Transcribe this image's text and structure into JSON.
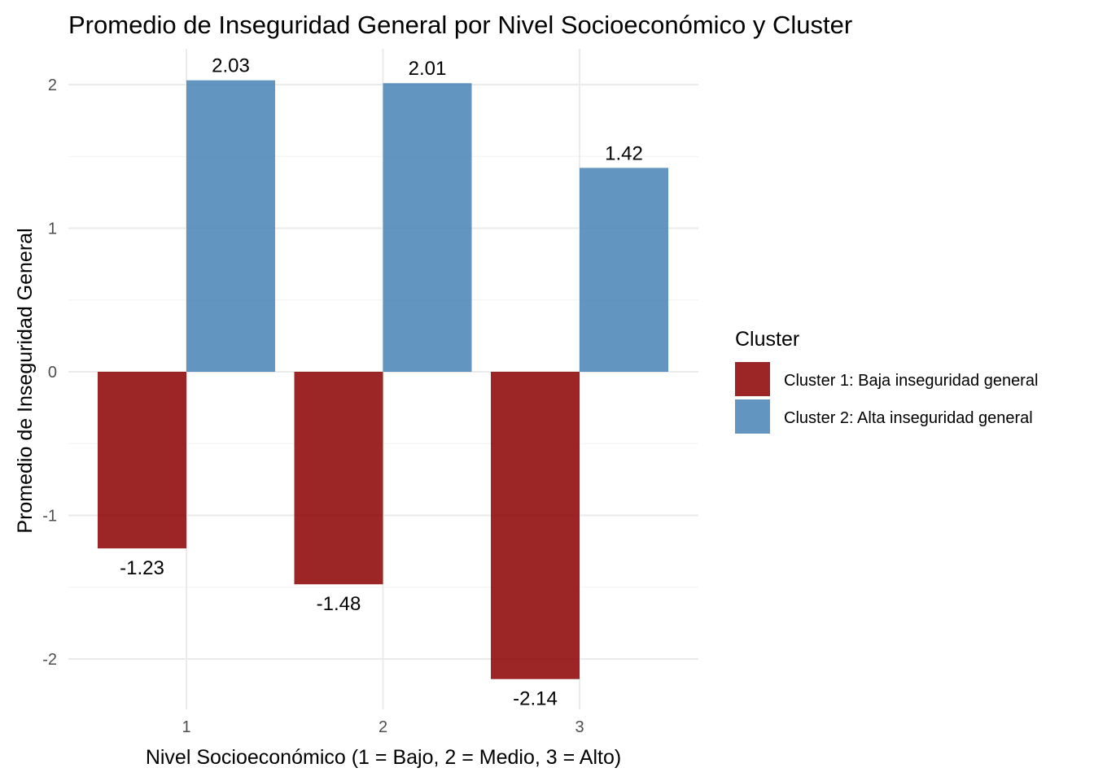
{
  "chart_data": {
    "type": "bar",
    "title": "Promedio de Inseguridad General por Nivel Socioeconómico y Cluster",
    "xlabel": "Nivel Socioeconómico (1 = Bajo, 2 = Medio, 3 = Alto)",
    "ylabel": "Promedio de Inseguridad General",
    "categories": [
      "1",
      "2",
      "3"
    ],
    "ylim": [
      -2.35,
      2.2
    ],
    "yticks": [
      -2,
      -1,
      0,
      1,
      2
    ],
    "ytick_labels": [
      "-2",
      "-1",
      "0",
      "1",
      "2"
    ],
    "grid": true,
    "legend": {
      "title": "Cluster",
      "position": "right"
    },
    "series": [
      {
        "name": "Cluster 1: Baja inseguridad general",
        "color": "#8B0000",
        "values": [
          -1.23,
          -1.48,
          -2.14
        ],
        "labels": [
          "-1.23",
          "-1.48",
          "-2.14"
        ]
      },
      {
        "name": "Cluster 2: Alta inseguridad general",
        "color": "#4682B4",
        "values": [
          2.03,
          2.01,
          1.42
        ],
        "labels": [
          "2.03",
          "2.01",
          "1.42"
        ]
      }
    ]
  }
}
